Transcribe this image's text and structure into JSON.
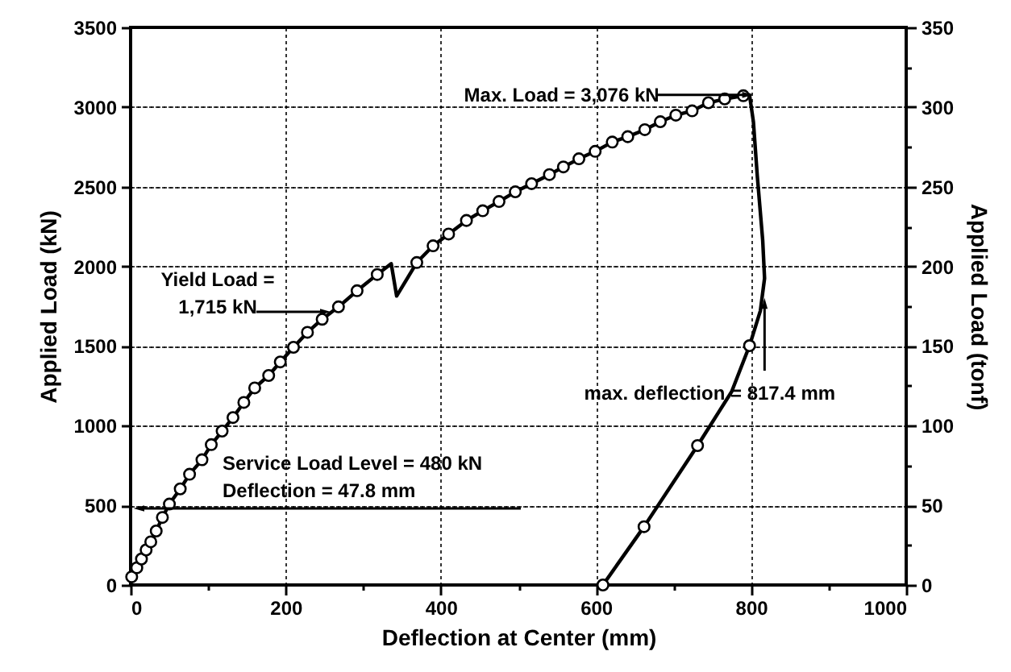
{
  "chart_data": {
    "type": "line",
    "xlabel": "Deflection at Center  (mm)",
    "ylabel": "Applied Load  (kN)",
    "y2label": "Applied Load  (tonf)",
    "xlim": [
      0,
      1000
    ],
    "xticks": [
      0,
      {
        "value": 100,
        "label": null
      },
      200,
      {
        "value": 300,
        "label": null
      },
      400,
      {
        "value": 500,
        "label": null
      },
      600,
      {
        "value": 700,
        "label": null
      },
      800,
      {
        "value": 900,
        "label": null
      },
      1000
    ],
    "ylim": [
      0,
      3500
    ],
    "yticks": [
      0,
      {
        "value": 250,
        "label": null
      },
      500,
      {
        "value": 750,
        "label": null
      },
      1000,
      {
        "value": 1250,
        "label": null
      },
      1500,
      {
        "value": 1750,
        "label": null
      },
      2000,
      {
        "value": 2250,
        "label": null
      },
      2500,
      {
        "value": 2750,
        "label": null
      },
      3000,
      {
        "value": 3250,
        "label": null
      },
      3500
    ],
    "y2lim": [
      0,
      350
    ],
    "y2ticks": [
      0,
      {
        "value": 25,
        "label": null
      },
      50,
      {
        "value": 75,
        "label": null
      },
      100,
      {
        "value": 125,
        "label": null
      },
      150,
      {
        "value": 175,
        "label": null
      },
      200,
      {
        "value": 225,
        "label": null
      },
      250,
      {
        "value": 275,
        "label": null
      },
      300,
      {
        "value": 325,
        "label": null
      },
      350
    ],
    "grid": true,
    "marker": "circle",
    "series": [
      {
        "type": "line",
        "marker": "none",
        "color": "#000000",
        "x": [
          0,
          1.4,
          8,
          14,
          20,
          26,
          33,
          41,
          50,
          64,
          76,
          92,
          104,
          118,
          132,
          146,
          160,
          178,
          193,
          210,
          228,
          247,
          268,
          292,
          318,
          336,
          343,
          369,
          390,
          410,
          433,
          454,
          475,
          496,
          517,
          540,
          558,
          578,
          599,
          621,
          641,
          663,
          683,
          703,
          724,
          745,
          766,
          790,
          798,
          803,
          808,
          815,
          817.4,
          812,
          798,
          775,
          731,
          662,
          609
        ],
        "values": [
          0,
          51,
          108,
          163,
          220,
          271,
          339,
          424,
          508,
          603,
          695,
          786,
          881,
          966,
          1051,
          1146,
          1237,
          1315,
          1400,
          1492,
          1586,
          1668,
          1746,
          1847,
          1949,
          2017,
          1814,
          2024,
          2129,
          2203,
          2288,
          2349,
          2407,
          2468,
          2519,
          2576,
          2624,
          2675,
          2722,
          2780,
          2814,
          2858,
          2908,
          2949,
          2976,
          3027,
          3051,
          3071,
          3076,
          2908,
          2569,
          2163,
          1925,
          1722,
          1502,
          1214,
          875,
          366,
          0
        ]
      },
      {
        "type": "scatter",
        "color": "#000000",
        "x": [
          1.4,
          8,
          14,
          20,
          26,
          33,
          41,
          50,
          64,
          76,
          92,
          104,
          118,
          132,
          146,
          160,
          178,
          193,
          210,
          228,
          247,
          268,
          292,
          318,
          369,
          390,
          410,
          433,
          454,
          475,
          496,
          517,
          540,
          558,
          578,
          599,
          621,
          641,
          663,
          683,
          703,
          724,
          745,
          766,
          790,
          798,
          731,
          662,
          609
        ],
        "values": [
          51,
          108,
          163,
          220,
          271,
          339,
          424,
          508,
          603,
          695,
          786,
          881,
          966,
          1051,
          1146,
          1237,
          1315,
          1400,
          1492,
          1586,
          1668,
          1746,
          1847,
          1949,
          2024,
          2129,
          2203,
          2288,
          2349,
          2407,
          2468,
          2519,
          2576,
          2624,
          2675,
          2722,
          2780,
          2814,
          2858,
          2908,
          2949,
          2976,
          3027,
          3051,
          3071,
          1502,
          875,
          366,
          0
        ]
      }
    ],
    "annotations": [
      "Max. Load = 3,076 kN",
      {
        "text": "Yield Load =\n1,715 kN",
        "x": 262,
        "y": 1715
      },
      {
        "text": "Service Load Level = 480 kN\nDeflection = 47.8 mm",
        "x": 47.8,
        "y": 480
      },
      {
        "text": "max. deflection = 817.4 mm",
        "x": 817.4,
        "y": 1800
      }
    ]
  }
}
